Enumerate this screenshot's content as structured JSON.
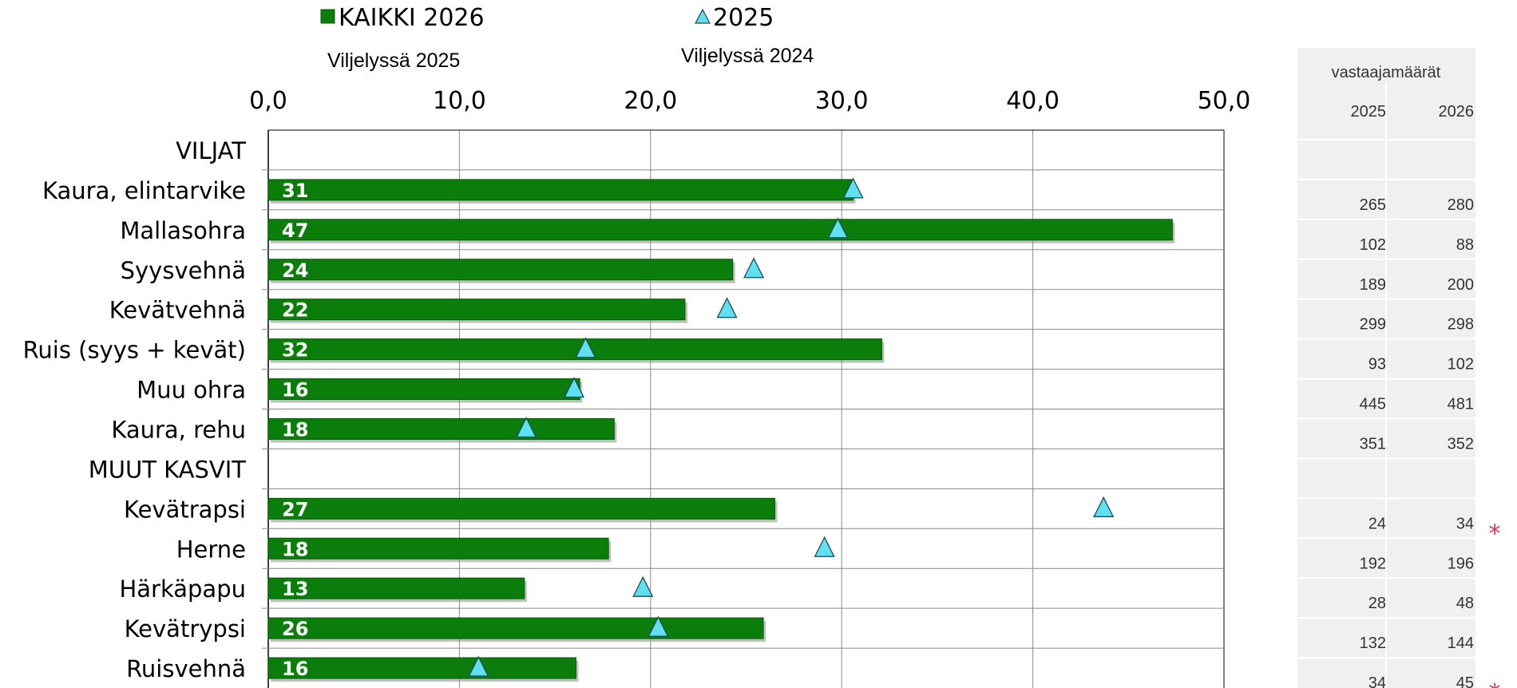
{
  "legend": {
    "series1_label": "KAIKKI 2026",
    "series2_label": "2025",
    "sub1": "Viljelyssä 2025",
    "sub2": "Viljelyssä 2024"
  },
  "respondents": {
    "title": "vastaajamäärät",
    "col_2025": "2025",
    "col_2026": "2026"
  },
  "colors": {
    "bar": "#0a7d0a",
    "bar_edge": "#045c04",
    "marker": "#5ee0f2",
    "panel": "#f0f0f0",
    "star": "#e0305a"
  },
  "chart_data": {
    "type": "bar",
    "orientation": "horizontal",
    "xlim": [
      0,
      50
    ],
    "xticks": [
      "0,0",
      "10,0",
      "20,0",
      "30,0",
      "40,0",
      "50,0"
    ],
    "grid": true,
    "legend_position": "top",
    "categories": [
      {
        "label": "VILJAT",
        "header": true
      },
      {
        "label": "Kaura, elintarvike",
        "value": 30.6,
        "bar_label": "31",
        "marker": 30.6,
        "n2025": "265",
        "n2026": "280",
        "star": false
      },
      {
        "label": "Mallasohra",
        "value": 47.3,
        "bar_label": "47",
        "marker": 29.8,
        "n2025": "102",
        "n2026": "88",
        "star": false
      },
      {
        "label": "Syysvehnä",
        "value": 24.3,
        "bar_label": "24",
        "marker": 25.4,
        "n2025": "189",
        "n2026": "200",
        "star": false
      },
      {
        "label": "Kevätvehnä",
        "value": 21.8,
        "bar_label": "22",
        "marker": 24.0,
        "n2025": "299",
        "n2026": "298",
        "star": false
      },
      {
        "label": "Ruis (syys + kevät)",
        "value": 32.1,
        "bar_label": "32",
        "marker": 16.6,
        "n2025": "93",
        "n2026": "102",
        "star": false
      },
      {
        "label": "Muu ohra",
        "value": 16.3,
        "bar_label": "16",
        "marker": 16.0,
        "n2025": "445",
        "n2026": "481",
        "star": false
      },
      {
        "label": "Kaura, rehu",
        "value": 18.1,
        "bar_label": "18",
        "marker": 13.5,
        "n2025": "351",
        "n2026": "352",
        "star": false
      },
      {
        "label": "MUUT KASVIT",
        "header": true
      },
      {
        "label": "Kevätrapsi",
        "value": 26.5,
        "bar_label": "27",
        "marker": 43.7,
        "n2025": "24",
        "n2026": "34",
        "star": true
      },
      {
        "label": "Herne",
        "value": 17.8,
        "bar_label": "18",
        "marker": 29.1,
        "n2025": "192",
        "n2026": "196",
        "star": false
      },
      {
        "label": "Härkäpapu",
        "value": 13.4,
        "bar_label": "13",
        "marker": 19.6,
        "n2025": "28",
        "n2026": "48",
        "star": false
      },
      {
        "label": "Kevätrypsi",
        "value": 25.9,
        "bar_label": "26",
        "marker": 20.4,
        "n2025": "132",
        "n2026": "144",
        "star": false
      },
      {
        "label": "Ruisvehnä",
        "value": 16.1,
        "bar_label": "16",
        "marker": 11.0,
        "n2025": "34",
        "n2026": "45",
        "star": true
      }
    ],
    "series": [
      {
        "name": "KAIKKI 2026",
        "kind": "bar"
      },
      {
        "name": "2025",
        "kind": "triangle-marker"
      }
    ]
  }
}
